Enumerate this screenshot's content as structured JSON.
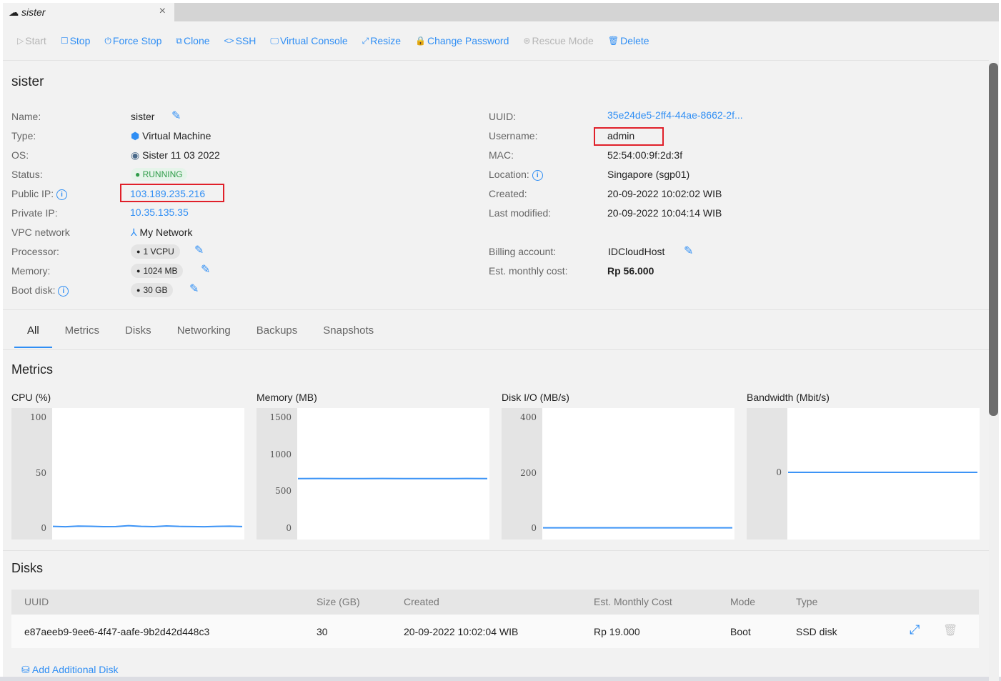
{
  "tab": {
    "title": "sister",
    "close": "×"
  },
  "toolbar": [
    {
      "label": "Start",
      "icon": "▷",
      "disabled": true
    },
    {
      "label": "Stop",
      "icon": "☐",
      "disabled": false
    },
    {
      "label": "Force Stop",
      "icon": "⏻",
      "disabled": false
    },
    {
      "label": "Clone",
      "icon": "⧉",
      "disabled": false
    },
    {
      "label": "SSH",
      "icon": "<>",
      "disabled": false
    },
    {
      "label": "Virtual Console",
      "icon": "🖵",
      "disabled": false
    },
    {
      "label": "Resize",
      "icon": "⤢",
      "disabled": false
    },
    {
      "label": "Change Password",
      "icon": "🔒",
      "disabled": false
    },
    {
      "label": "Rescue Mode",
      "icon": "⊛",
      "disabled": true
    },
    {
      "label": "Delete",
      "icon": "🗑",
      "disabled": false
    }
  ],
  "title": "sister",
  "left": {
    "name_label": "Name:",
    "name": "sister",
    "type_label": "Type:",
    "type": "Virtual Machine",
    "os_label": "OS:",
    "os": "Sister 11 03 2022",
    "status_label": "Status:",
    "status": "RUNNING",
    "public_ip_label": "Public IP:",
    "public_ip": "103.189.235.216",
    "private_ip_label": "Private IP:",
    "private_ip": "10.35.135.35",
    "vpc_label": "VPC network",
    "vpc": "My Network",
    "processor_label": "Processor:",
    "processor": "1 VCPU",
    "memory_label": "Memory:",
    "memory": "1024 MB",
    "boot_disk_label": "Boot disk:",
    "boot_disk": "30 GB"
  },
  "right": {
    "uuid_label": "UUID:",
    "uuid": "35e24de5-2ff4-44ae-8662-2f...",
    "username_label": "Username:",
    "username": "admin",
    "mac_label": "MAC:",
    "mac": "52:54:00:9f:2d:3f",
    "location_label": "Location:",
    "location": "Singapore (sgp01)",
    "created_label": "Created:",
    "created": "20-09-2022 10:02:02 WIB",
    "modified_label": "Last modified:",
    "modified": "20-09-2022 10:04:14 WIB",
    "billing_label": "Billing account:",
    "billing": "IDCloudHost",
    "cost_label": "Est. monthly cost:",
    "cost": "Rp 56.000"
  },
  "tabs": [
    "All",
    "Metrics",
    "Disks",
    "Networking",
    "Backups",
    "Snapshots"
  ],
  "metrics_title": "Metrics",
  "chart_data": [
    {
      "type": "line",
      "title": "CPU (%)",
      "ylim": [
        0,
        100
      ],
      "yticks": [
        "100",
        "50",
        "0"
      ],
      "tickvals": [
        100,
        50,
        0
      ],
      "values": [
        1.5,
        1.2,
        1.8,
        1.6,
        1.3,
        1.4,
        2.2,
        1.5,
        1.3,
        1.9,
        1.5,
        1.4,
        1.2,
        1.5,
        1.7,
        1.4
      ],
      "color": "#3d94f6"
    },
    {
      "type": "line",
      "title": "Memory (MB)",
      "ylim": [
        0,
        1500
      ],
      "yticks": [
        "1500",
        "1000",
        "500",
        "0"
      ],
      "tickvals": [
        1500,
        1000,
        500,
        0
      ],
      "values": [
        670,
        671,
        670,
        670,
        671,
        670,
        670,
        670,
        671,
        670
      ],
      "color": "#3d94f6"
    },
    {
      "type": "line",
      "title": "Disk I/O (MB/s)",
      "ylim": [
        0,
        400
      ],
      "yticks": [
        "400",
        "200",
        "0"
      ],
      "tickvals": [
        400,
        200,
        0
      ],
      "values": [
        1,
        1,
        1,
        1,
        1,
        1,
        1,
        1
      ],
      "color": "#3d94f6"
    },
    {
      "type": "line",
      "title": "Bandwidth (Mbit/s)",
      "ylim": [
        -1,
        1
      ],
      "yticks": [
        "0"
      ],
      "tickvals": [
        0
      ],
      "values": [
        0,
        0,
        0,
        0,
        0,
        0,
        0,
        0
      ],
      "color": "#3d94f6"
    }
  ],
  "disks": {
    "title": "Disks",
    "headers": [
      "UUID",
      "Size (GB)",
      "Created",
      "Est. Monthly Cost",
      "Mode",
      "Type"
    ],
    "rows": [
      [
        "e87aeeb9-9ee6-4f47-aafe-9b2d42d448c3",
        "30",
        "20-09-2022 10:02:04 WIB",
        "Rp 19.000",
        "Boot",
        "SSD disk"
      ]
    ],
    "add_label": "Add Additional Disk"
  }
}
